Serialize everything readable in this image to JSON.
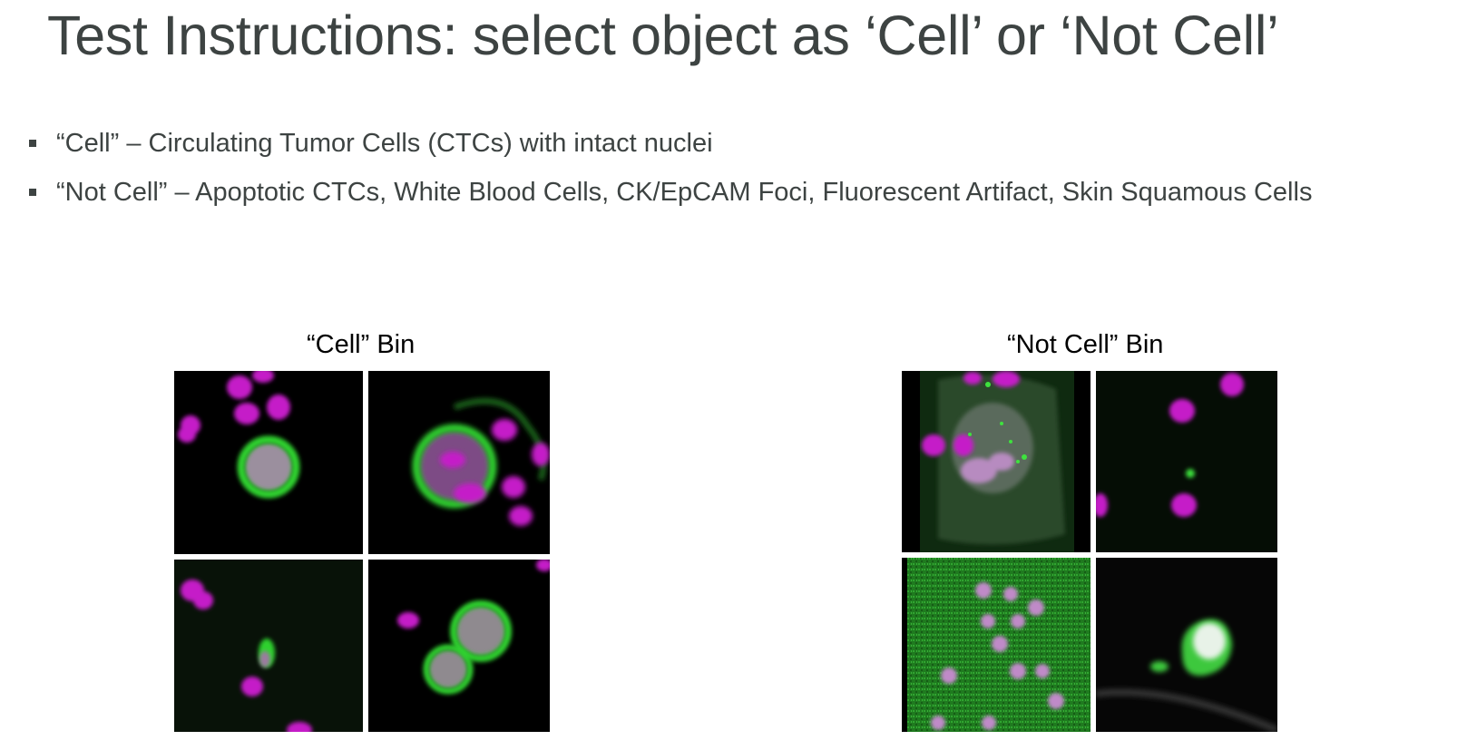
{
  "title": "Test Instructions: select object as ‘Cell’ or ‘Not Cell’",
  "bullets": [
    "“Cell” – Circulating Tumor Cells (CTCs) with intact nuclei",
    "“Not Cell” – Apoptotic CTCs, White Blood Cells, CK/EpCAM Foci, Fluorescent Artifact, Skin Squamous Cells"
  ],
  "bins": {
    "cell": {
      "title": "“Cell” Bin"
    },
    "not_cell": {
      "title": "“Not Cell” Bin"
    }
  },
  "colors": {
    "nucleus": "#c51fc8",
    "cytokeratin": "#2fd12f",
    "text": "#3d4342"
  }
}
